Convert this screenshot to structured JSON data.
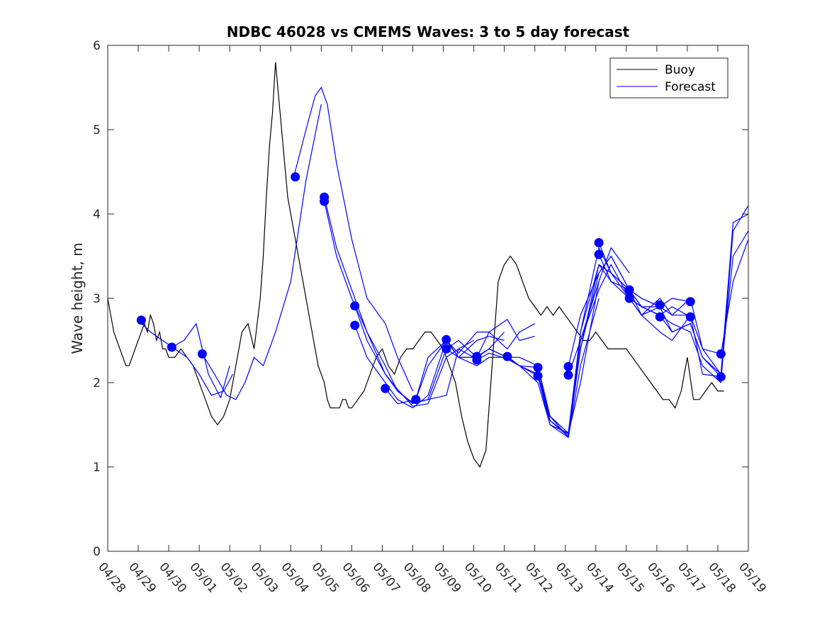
{
  "chart_data": {
    "type": "line",
    "title": "NDBC 46028 vs CMEMS Waves: 3 to 5 day forecast",
    "xlabel": "",
    "ylabel": "Wave height, m",
    "x_tick_labels": [
      "04/28",
      "04/29",
      "04/30",
      "05/01",
      "05/02",
      "05/03",
      "05/04",
      "05/05",
      "05/06",
      "05/07",
      "05/08",
      "05/09",
      "05/10",
      "05/11",
      "05/12",
      "05/13",
      "05/14",
      "05/15",
      "05/16",
      "05/17",
      "05/18",
      "05/19"
    ],
    "y_ticks": [
      0,
      1,
      2,
      3,
      4,
      5,
      6
    ],
    "xlim_days": [
      0,
      21
    ],
    "ylim": [
      0,
      6
    ],
    "grid": false,
    "legend": {
      "placement": "top-right",
      "entries": [
        {
          "name": "Buoy",
          "color": "#000000"
        },
        {
          "name": "Forecast",
          "color": "#0000ff"
        }
      ]
    },
    "buoy": {
      "color": "#000000",
      "day": [
        0,
        0.1,
        0.2,
        0.3,
        0.4,
        0.5,
        0.6,
        0.7,
        0.8,
        0.9,
        1.0,
        1.1,
        1.2,
        1.3,
        1.4,
        1.5,
        1.6,
        1.7,
        1.8,
        1.9,
        2.0,
        2.2,
        2.4,
        2.6,
        2.8,
        3.0,
        3.2,
        3.4,
        3.6,
        3.8,
        4.0,
        4.2,
        4.4,
        4.6,
        4.8,
        5.0,
        5.1,
        5.2,
        5.3,
        5.4,
        5.5,
        5.6,
        5.7,
        5.8,
        5.9,
        6.0,
        6.1,
        6.2,
        6.3,
        6.4,
        6.5,
        6.6,
        6.7,
        6.8,
        6.9,
        7.0,
        7.1,
        7.2,
        7.3,
        7.4,
        7.5,
        7.6,
        7.7,
        7.8,
        7.9,
        8.0,
        8.2,
        8.4,
        8.6,
        8.8,
        9.0,
        9.2,
        9.4,
        9.6,
        9.8,
        10.0,
        10.2,
        10.4,
        10.6,
        10.8,
        11.0,
        11.2,
        11.4,
        11.6,
        11.8,
        12.0,
        12.2,
        12.4,
        12.6,
        12.8,
        13.0,
        13.2,
        13.4,
        13.6,
        13.8,
        14.0,
        14.2,
        14.4,
        14.6,
        14.8,
        15.0,
        15.2,
        15.4,
        15.6,
        15.8,
        16.0,
        16.2,
        16.4,
        16.6,
        16.8,
        17.0,
        17.2,
        17.4,
        17.6,
        17.8,
        18.0,
        18.2,
        18.4,
        18.6,
        18.8,
        19.0,
        19.2,
        19.4,
        19.6,
        19.8,
        20.0,
        20.1,
        20.2
      ],
      "values": [
        3.0,
        2.8,
        2.6,
        2.5,
        2.4,
        2.3,
        2.2,
        2.2,
        2.3,
        2.4,
        2.5,
        2.6,
        2.7,
        2.6,
        2.8,
        2.7,
        2.5,
        2.6,
        2.4,
        2.4,
        2.3,
        2.3,
        2.4,
        2.3,
        2.2,
        2.0,
        1.8,
        1.6,
        1.5,
        1.6,
        1.8,
        2.2,
        2.6,
        2.7,
        2.4,
        3.0,
        3.5,
        4.2,
        4.8,
        5.2,
        5.8,
        5.4,
        5.0,
        4.6,
        4.2,
        4.0,
        3.8,
        3.6,
        3.4,
        3.2,
        3.0,
        2.8,
        2.6,
        2.4,
        2.2,
        2.1,
        2.0,
        1.8,
        1.7,
        1.7,
        1.7,
        1.7,
        1.8,
        1.8,
        1.7,
        1.7,
        1.8,
        1.9,
        2.1,
        2.3,
        2.4,
        2.2,
        2.1,
        2.3,
        2.4,
        2.4,
        2.5,
        2.6,
        2.6,
        2.5,
        2.4,
        2.2,
        2.0,
        1.6,
        1.3,
        1.1,
        1.0,
        1.2,
        2.2,
        3.2,
        3.4,
        3.5,
        3.4,
        3.2,
        3.0,
        2.9,
        2.8,
        2.9,
        2.8,
        2.9,
        2.8,
        2.7,
        2.6,
        2.5,
        2.5,
        2.6,
        2.5,
        2.4,
        2.4,
        2.4,
        2.4,
        2.3,
        2.2,
        2.1,
        2.0,
        1.9,
        1.8,
        1.8,
        1.7,
        1.9,
        2.3,
        1.8,
        1.8,
        1.9,
        2.0,
        1.9,
        1.9,
        1.9
      ]
    },
    "forecast_series": [
      {
        "color": "#0000ff",
        "day": [
          1.0,
          1.4,
          1.8,
          2.2,
          2.6,
          3.0,
          3.4,
          3.8,
          4.1
        ],
        "values": [
          2.74,
          2.6,
          2.5,
          2.4,
          2.3,
          2.1,
          1.85,
          1.9,
          2.1
        ]
      },
      {
        "color": "#0000ff",
        "day": [
          2.1,
          2.5,
          2.9,
          3.3,
          3.7,
          4.0
        ],
        "values": [
          2.42,
          2.5,
          2.7,
          2.1,
          1.82,
          2.2
        ]
      },
      {
        "color": "#0000ff",
        "day": [
          3.1,
          3.5,
          3.9,
          4.2,
          4.5,
          4.8,
          5.1,
          5.5,
          6.0,
          6.5,
          7.0
        ],
        "values": [
          2.34,
          2.1,
          1.85,
          1.8,
          2.0,
          2.3,
          2.2,
          2.6,
          3.2,
          4.4,
          5.3
        ]
      },
      {
        "color": "#0000ff",
        "day": [
          6.1,
          6.5,
          6.8,
          7.0,
          7.2,
          7.5,
          8.0,
          8.5,
          9.1,
          9.5,
          10.0
        ],
        "values": [
          4.44,
          5.0,
          5.4,
          5.5,
          5.3,
          4.6,
          3.7,
          3.0,
          2.7,
          2.3,
          1.9
        ]
      },
      {
        "color": "#0000ff",
        "day": [
          7.1,
          7.5,
          8.0,
          8.5,
          9.1,
          9.5,
          10.0,
          10.5,
          11.1,
          11.5,
          12.0
        ],
        "values": [
          4.2,
          3.6,
          3.1,
          2.6,
          2.2,
          1.9,
          1.76,
          1.8,
          1.85,
          2.4,
          2.5
        ]
      },
      {
        "color": "#0000ff",
        "day": [
          7.1,
          7.5,
          8.0,
          8.5,
          9.1,
          9.5,
          10.0,
          10.5,
          11.1,
          11.5,
          12.0
        ],
        "values": [
          4.15,
          3.5,
          3.0,
          2.6,
          2.1,
          1.92,
          1.72,
          1.75,
          2.3,
          2.4,
          2.3
        ]
      },
      {
        "color": "#0000ff",
        "day": [
          8.1,
          8.5,
          9.1,
          9.5,
          10.0,
          10.5,
          11.1,
          11.5,
          12.1,
          12.5,
          13.0
        ],
        "values": [
          2.91,
          2.5,
          2.1,
          1.9,
          1.75,
          1.8,
          2.4,
          2.5,
          2.3,
          2.4,
          2.6
        ]
      },
      {
        "color": "#0000ff",
        "day": [
          8.1,
          8.5,
          9.1,
          9.5,
          10.0,
          10.5,
          11.1,
          11.5,
          12.1,
          12.5,
          13.0
        ],
        "values": [
          2.68,
          2.3,
          2.0,
          1.8,
          1.7,
          1.85,
          2.5,
          2.3,
          2.5,
          2.55,
          2.5
        ]
      },
      {
        "color": "#0000ff",
        "day": [
          9.1,
          9.5,
          10.1,
          10.5,
          11.1,
          11.5,
          12.1,
          12.5,
          13.1,
          13.5,
          14.0
        ],
        "values": [
          1.93,
          1.75,
          1.8,
          2.3,
          2.5,
          2.3,
          2.3,
          2.6,
          2.4,
          2.6,
          2.7
        ]
      },
      {
        "color": "#0000ff",
        "day": [
          10.1,
          10.5,
          11.1,
          11.5,
          12.1,
          12.5,
          13.1,
          13.5,
          14.0
        ],
        "values": [
          1.8,
          2.2,
          2.5,
          2.35,
          2.6,
          2.6,
          2.75,
          2.5,
          2.55
        ]
      },
      {
        "color": "#0000ff",
        "day": [
          11.1,
          11.5,
          12.1,
          12.5,
          13.1,
          13.5,
          14.1,
          14.5,
          15.1,
          15.5,
          16.1
        ],
        "values": [
          2.51,
          2.3,
          2.3,
          2.4,
          2.3,
          2.3,
          2.2,
          1.6,
          1.4,
          2.5,
          3.2
        ]
      },
      {
        "color": "#0000ff",
        "day": [
          11.1,
          11.5,
          12.1,
          12.5,
          13.1,
          13.5,
          14.1,
          14.5,
          15.1,
          15.5,
          16.1
        ],
        "values": [
          2.4,
          2.3,
          2.2,
          2.3,
          2.3,
          2.2,
          2.1,
          1.6,
          1.35,
          2.2,
          3.0
        ]
      },
      {
        "color": "#0000ff",
        "day": [
          12.1,
          12.5,
          13.1,
          13.5,
          14.1,
          14.5,
          15.1,
          15.5,
          16.1,
          16.5,
          17.1
        ],
        "values": [
          2.31,
          2.4,
          2.3,
          2.2,
          2.08,
          1.5,
          1.4,
          2.0,
          3.2,
          3.6,
          3.3
        ]
      },
      {
        "color": "#0000ff",
        "day": [
          12.1,
          12.5,
          13.1,
          13.5,
          14.1,
          14.5,
          15.1,
          15.5,
          16.1,
          16.5,
          17.1
        ],
        "values": [
          2.27,
          2.35,
          2.28,
          2.2,
          2.18,
          1.55,
          1.38,
          2.4,
          3.3,
          3.5,
          3.1
        ]
      },
      {
        "color": "#0000ff",
        "day": [
          13.1,
          13.5,
          14.1,
          14.5,
          15.1,
          15.5,
          16.1,
          16.5,
          17.1,
          17.5,
          18.1
        ],
        "values": [
          2.31,
          2.2,
          2.0,
          1.5,
          1.35,
          2.6,
          3.4,
          3.3,
          3.1,
          2.8,
          2.9
        ]
      },
      {
        "color": "#0000ff",
        "day": [
          14.1,
          14.5,
          15.1,
          15.5,
          16.1,
          16.5,
          17.1,
          17.5,
          18.1,
          18.5,
          19.1
        ],
        "values": [
          2.18,
          1.6,
          1.4,
          2.6,
          3.6,
          3.3,
          3.1,
          3.0,
          2.9,
          3.0,
          2.96
        ]
      },
      {
        "color": "#0000ff",
        "day": [
          14.1,
          14.5,
          15.1,
          15.5,
          16.1,
          16.5,
          17.1,
          17.5,
          18.1,
          18.5,
          19.1
        ],
        "values": [
          2.08,
          1.55,
          1.36,
          2.4,
          3.4,
          3.2,
          3.0,
          2.9,
          2.8,
          2.9,
          2.78
        ]
      },
      {
        "color": "#0000ff",
        "day": [
          15.1,
          15.5,
          16.1,
          16.5,
          17.1,
          17.5,
          18.1,
          18.5,
          19.1,
          19.5,
          20.1
        ],
        "values": [
          2.19,
          2.8,
          3.3,
          3.5,
          3.1,
          2.9,
          2.8,
          2.6,
          2.7,
          2.3,
          2.07
        ]
      },
      {
        "color": "#0000ff",
        "day": [
          15.1,
          15.5,
          16.1,
          16.5,
          17.1,
          17.5,
          18.1,
          18.5,
          19.1,
          19.5,
          20.1
        ],
        "values": [
          2.09,
          2.5,
          3.1,
          3.4,
          3.0,
          2.8,
          2.6,
          2.5,
          2.8,
          2.1,
          2.07
        ]
      },
      {
        "color": "#0000ff",
        "day": [
          16.1,
          16.5,
          17.1,
          17.5,
          18.1,
          18.5,
          19.1,
          19.5,
          20.1,
          20.5,
          21.0
        ],
        "values": [
          3.66,
          3.3,
          3.0,
          2.9,
          2.8,
          2.7,
          2.6,
          2.2,
          2.0,
          3.8,
          4.1
        ]
      },
      {
        "color": "#0000ff",
        "day": [
          16.1,
          16.5,
          17.1,
          17.5,
          18.1,
          18.5,
          19.1,
          19.5,
          20.1,
          20.5,
          21.0
        ],
        "values": [
          3.52,
          3.2,
          3.1,
          3.0,
          2.9,
          2.6,
          2.7,
          2.3,
          2.1,
          3.5,
          3.8
        ]
      },
      {
        "color": "#0000ff",
        "day": [
          17.1,
          17.5,
          18.1,
          18.5,
          19.1,
          19.5,
          20.1,
          20.5,
          21.0
        ],
        "values": [
          3.1,
          2.9,
          2.9,
          2.8,
          3.0,
          2.4,
          2.34,
          3.2,
          3.7
        ]
      },
      {
        "color": "#0000ff",
        "day": [
          17.1,
          17.5,
          18.1,
          18.5,
          19.1,
          19.5,
          20.1,
          20.5,
          21.0
        ],
        "values": [
          3.0,
          2.8,
          3.0,
          2.8,
          2.8,
          2.4,
          2.1,
          3.9,
          4.0
        ]
      }
    ],
    "forecast_markers": {
      "color": "#0000ff",
      "day": [
        1.1,
        2.1,
        3.1,
        6.15,
        7.1,
        7.1,
        8.1,
        8.1,
        9.1,
        10.1,
        11.1,
        11.1,
        12.1,
        12.1,
        13.1,
        14.1,
        14.1,
        15.1,
        15.1,
        16.1,
        16.1,
        17.1,
        17.1,
        18.1,
        18.1,
        19.1,
        19.1,
        20.1,
        20.1
      ],
      "values": [
        2.74,
        2.42,
        2.34,
        4.44,
        4.2,
        4.15,
        2.91,
        2.68,
        1.93,
        1.8,
        2.51,
        2.4,
        2.31,
        2.27,
        2.31,
        2.18,
        2.08,
        2.19,
        2.09,
        3.66,
        3.52,
        3.1,
        3.0,
        2.92,
        2.78,
        2.96,
        2.78,
        2.34,
        2.07
      ]
    }
  }
}
